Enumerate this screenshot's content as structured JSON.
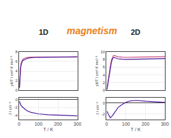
{
  "chart_data": [
    {
      "type": "line",
      "x": [
        2,
        3,
        5,
        8,
        10,
        15,
        20,
        30,
        40,
        50,
        60,
        80,
        100,
        150,
        200,
        250,
        300
      ],
      "series": [
        {
          "color": "#D05080",
          "values": [
            0.8,
            1.8,
            3.2,
            5.0,
            5.6,
            6.2,
            6.5,
            6.7,
            6.8,
            6.85,
            6.88,
            6.9,
            6.92,
            6.93,
            6.94,
            6.95,
            6.96
          ]
        },
        {
          "color": "#5020A0",
          "values": [
            0.5,
            1.4,
            2.8,
            4.5,
            5.2,
            5.9,
            6.2,
            6.45,
            6.6,
            6.72,
            6.78,
            6.84,
            6.87,
            6.89,
            6.91,
            6.93,
            6.94
          ]
        }
      ],
      "xlim": [
        0,
        300
      ],
      "ylim": [
        0,
        8
      ],
      "yticks": [
        0,
        2,
        4,
        6,
        8
      ],
      "ylabel": "χMT / cm³ K mol⁻¹",
      "tick_labels": "y"
    },
    {
      "type": "line",
      "x": [
        2,
        5,
        10,
        20,
        40,
        60,
        100,
        150,
        200,
        250,
        300
      ],
      "series": [
        {
          "color": "#5020A0",
          "values": [
            -0.5,
            -1.0,
            -1.5,
            -2.0,
            -2.8,
            -3.2,
            -3.6,
            -3.8,
            -3.9,
            -4.0,
            -4.1
          ]
        }
      ],
      "xlim": [
        0,
        300
      ],
      "xticks": [
        0,
        100,
        200,
        300
      ],
      "ylim": [
        -5,
        0.5
      ],
      "yticks": [
        -4,
        -2,
        0
      ],
      "xlabel": "T / K",
      "ylabel": "J / cm⁻¹"
    },
    {
      "type": "line",
      "x": [
        2,
        3,
        5,
        8,
        10,
        15,
        20,
        25,
        30,
        35,
        40,
        50,
        60,
        80,
        100,
        150,
        200,
        250,
        300
      ],
      "series": [
        {
          "color": "#D05080",
          "values": [
            0.3,
            0.7,
            1.5,
            2.8,
            3.5,
            5.0,
            6.5,
            7.8,
            8.6,
            9.0,
            9.0,
            8.8,
            8.7,
            8.6,
            8.55,
            8.6,
            8.65,
            8.7,
            8.75
          ]
        },
        {
          "color": "#5020A0",
          "values": [
            0.2,
            0.5,
            1.2,
            2.3,
            3.0,
            4.5,
            6.0,
            7.3,
            8.1,
            8.5,
            8.5,
            8.3,
            8.2,
            8.1,
            8.05,
            8.1,
            8.15,
            8.2,
            8.25
          ]
        }
      ],
      "xlim": [
        0,
        300
      ],
      "ylim": [
        0,
        10
      ],
      "yticks": [
        0,
        2,
        4,
        6,
        8,
        10
      ],
      "ylabel": "χMT / cm³ K mol⁻¹",
      "tick_labels": "y"
    },
    {
      "type": "line",
      "x": [
        2,
        5,
        8,
        10,
        15,
        20,
        30,
        40,
        50,
        60,
        80,
        100,
        120,
        150,
        200,
        250,
        300
      ],
      "series": [
        {
          "color": "#5020A0",
          "values": [
            -1.5,
            -1.8,
            -2.0,
            -2.1,
            -2.4,
            -2.7,
            -2.3,
            -1.8,
            -1.2,
            -0.8,
            -0.3,
            0.1,
            0.35,
            0.45,
            0.3,
            0.2,
            0.1
          ]
        }
      ],
      "xlim": [
        0,
        300
      ],
      "xticks": [
        0,
        100,
        200,
        300
      ],
      "ylim": [
        -3,
        1.0
      ],
      "yticks": [
        -2,
        0
      ],
      "xlabel": "T / K",
      "ylabel": "J / cm⁻¹"
    }
  ],
  "annotations": [
    {
      "text": "1D",
      "color": "#222222"
    },
    {
      "text": "magnetism",
      "color": "#E8821E"
    },
    {
      "text": "2D",
      "color": "#222222"
    }
  ]
}
